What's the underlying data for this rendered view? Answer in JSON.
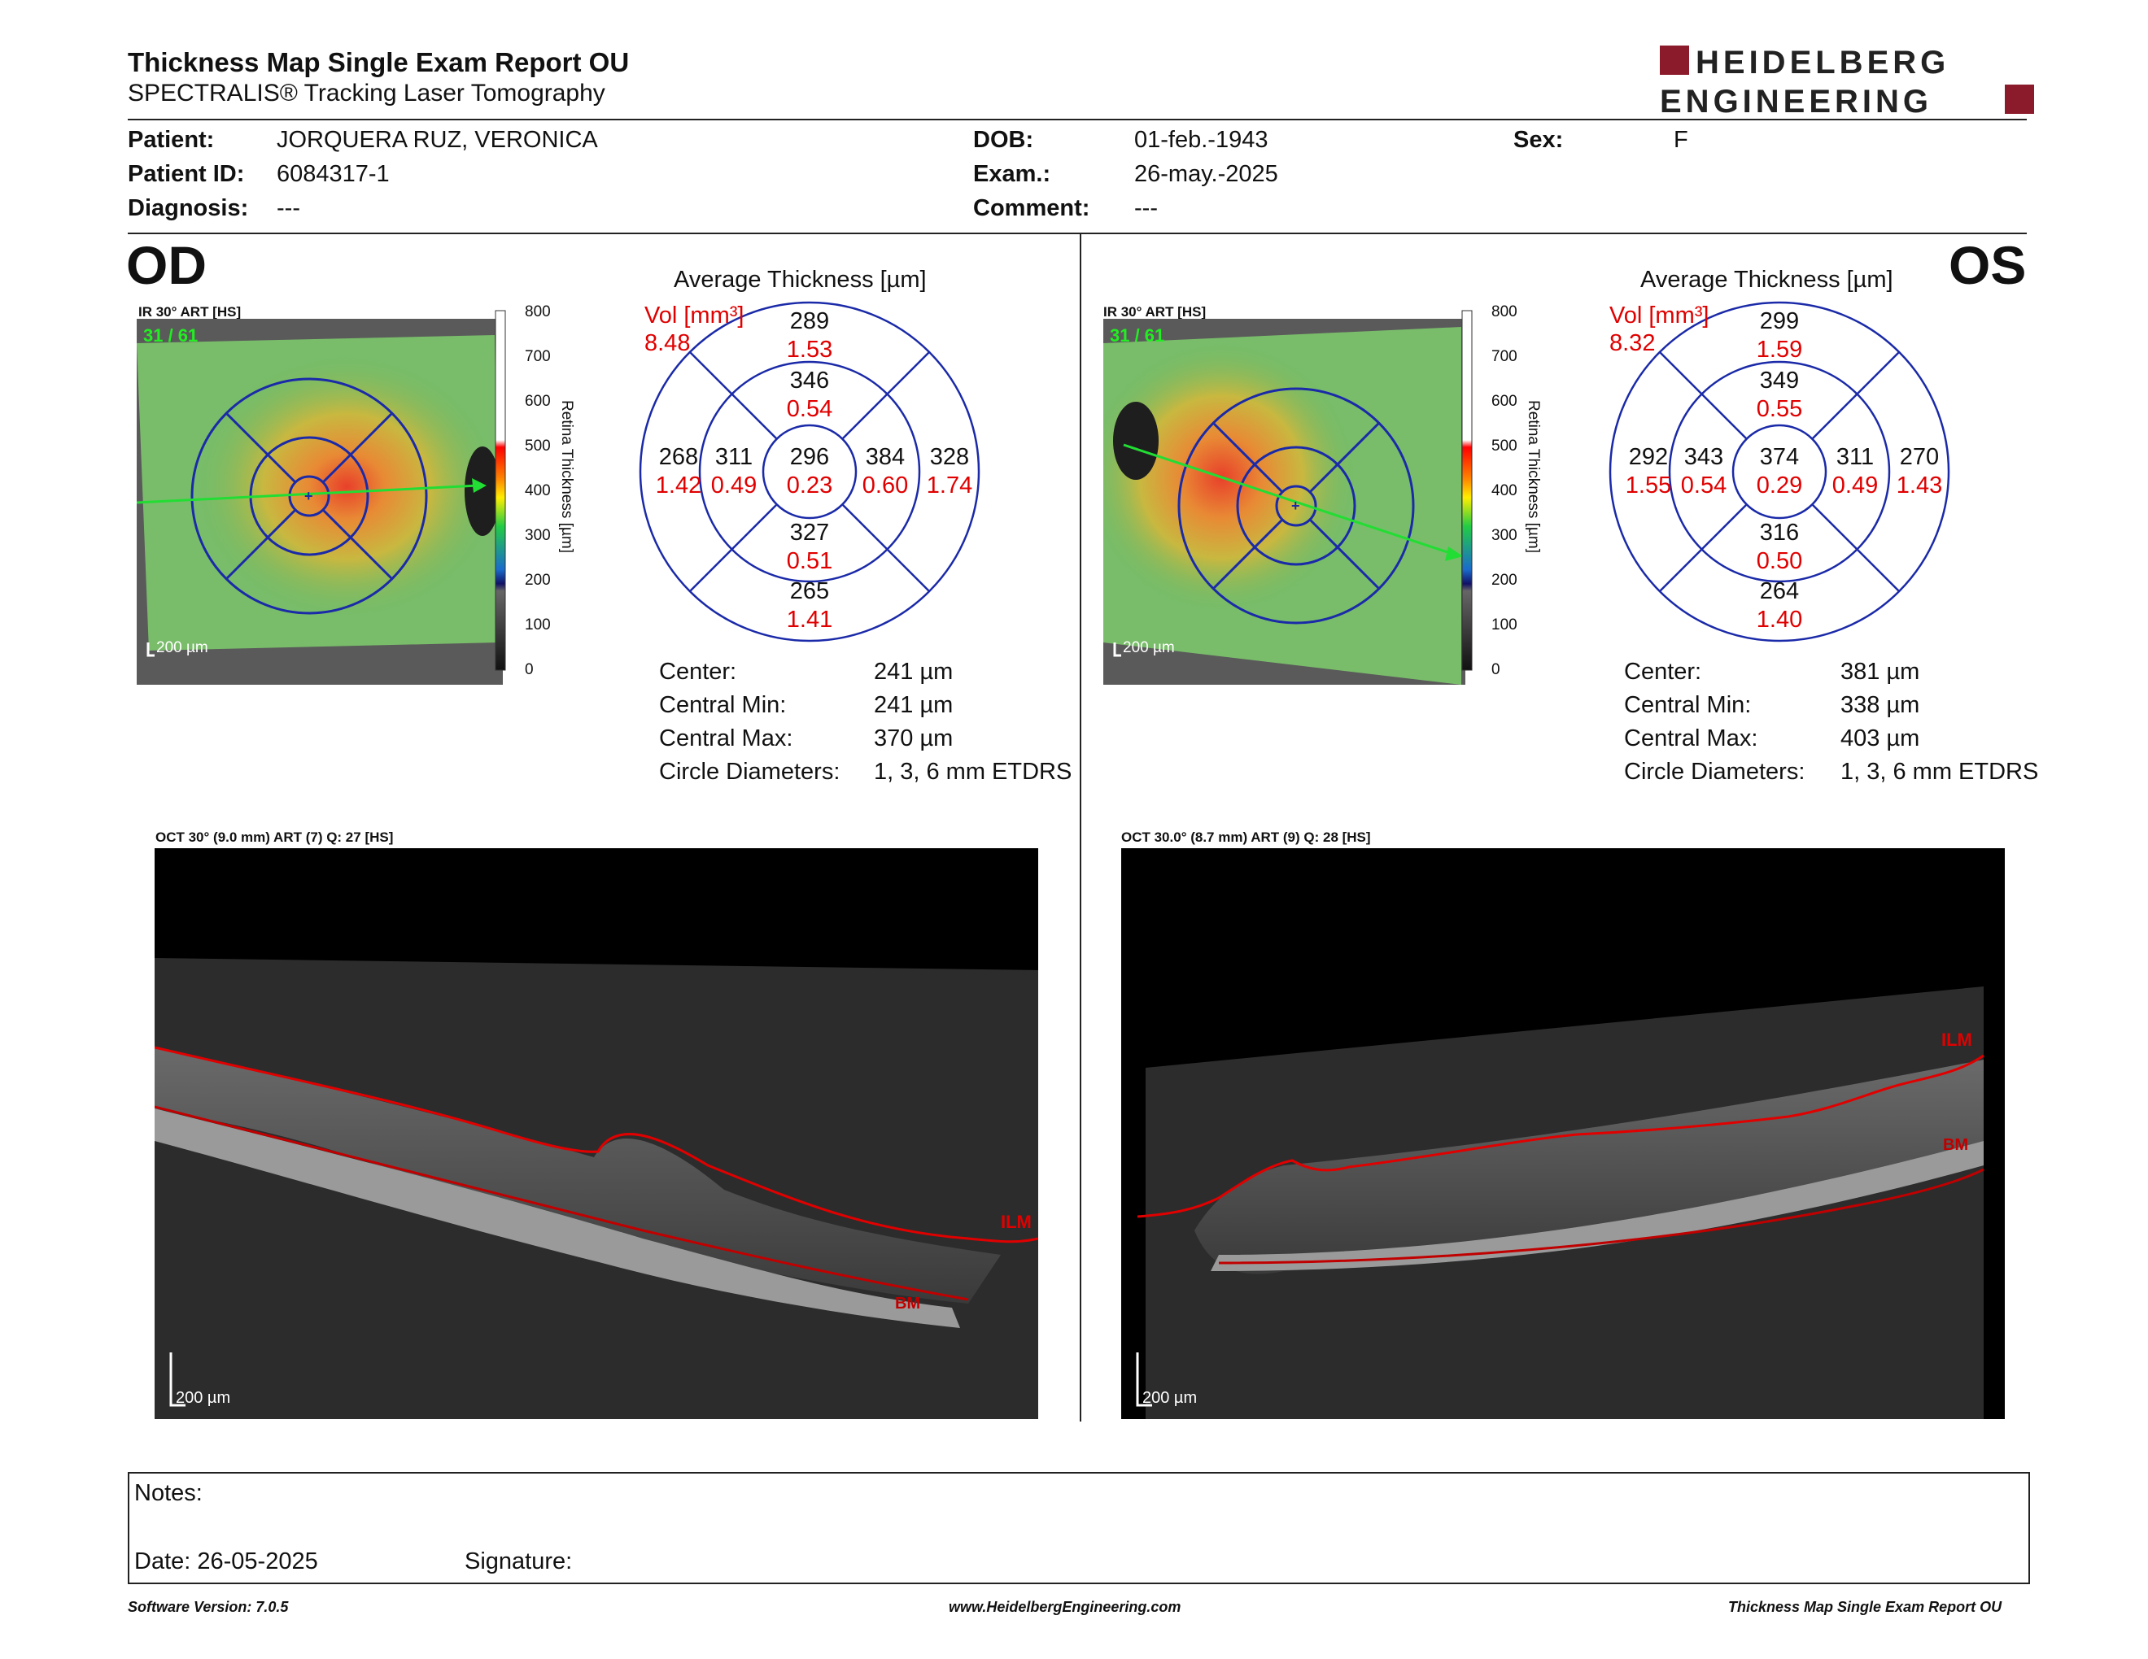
{
  "header": {
    "title": "Thickness Map Single Exam Report OU",
    "subtitle": "SPECTRALIS® Tracking Laser Tomography",
    "logo_line1": "HEIDELBERG",
    "logo_line2": "ENGINEERING",
    "logo_color": "#8b1a2b"
  },
  "patient": {
    "patient_label": "Patient:",
    "patient_value": "JORQUERA RUZ, VERONICA",
    "id_label": "Patient ID:",
    "id_value": "6084317-1",
    "diagnosis_label": "Diagnosis:",
    "diagnosis_value": "---",
    "dob_label": "DOB:",
    "dob_value": "01-feb.-1943",
    "exam_label": "Exam.:",
    "exam_value": "26-may.-2025",
    "comment_label": "Comment:",
    "comment_value": "---",
    "sex_label": "Sex:",
    "sex_value": "F"
  },
  "colorbar": {
    "title": "Retina Thickness [µm]",
    "ticks": [
      "800",
      "700",
      "600",
      "500",
      "400",
      "300",
      "200",
      "100",
      "0"
    ]
  },
  "od": {
    "eye": "OD",
    "ir_caption": "IR 30° ART [HS]",
    "frame": "31 / 61",
    "scale": "200 µm",
    "avg_title": "Average Thickness [µm]",
    "vol_label": "Vol [mm³]",
    "vol_total": "8.48",
    "sectors": {
      "center_t": "296",
      "center_v": "0.23",
      "inner_sup_t": "346",
      "inner_sup_v": "0.54",
      "inner_inf_t": "327",
      "inner_inf_v": "0.51",
      "inner_left_t": "311",
      "inner_left_v": "0.49",
      "inner_right_t": "384",
      "inner_right_v": "0.60",
      "outer_sup_t": "289",
      "outer_sup_v": "1.53",
      "outer_inf_t": "265",
      "outer_inf_v": "1.41",
      "outer_left_t": "268",
      "outer_left_v": "1.42",
      "outer_right_t": "328",
      "outer_right_v": "1.74"
    },
    "stats": {
      "center_label": "Center:",
      "center_value": "241 µm",
      "min_label": "Central Min:",
      "min_value": "241 µm",
      "max_label": "Central Max:",
      "max_value": "370 µm",
      "diam_label": "Circle Diameters:",
      "diam_value": "1, 3, 6 mm ETDRS"
    },
    "oct_caption": "OCT 30° (9.0 mm) ART (7) Q: 27 [HS]",
    "oct_scale": "200 µm",
    "ilm": "ILM",
    "bm": "BM"
  },
  "os": {
    "eye": "OS",
    "ir_caption": "IR 30° ART [HS]",
    "frame": "31 / 61",
    "scale": "200 µm",
    "avg_title": "Average Thickness [µm]",
    "vol_label": "Vol [mm³]",
    "vol_total": "8.32",
    "sectors": {
      "center_t": "374",
      "center_v": "0.29",
      "inner_sup_t": "349",
      "inner_sup_v": "0.55",
      "inner_inf_t": "316",
      "inner_inf_v": "0.50",
      "inner_left_t": "343",
      "inner_left_v": "0.54",
      "inner_right_t": "311",
      "inner_right_v": "0.49",
      "outer_sup_t": "299",
      "outer_sup_v": "1.59",
      "outer_inf_t": "264",
      "outer_inf_v": "1.40",
      "outer_left_t": "292",
      "outer_left_v": "1.55",
      "outer_right_t": "270",
      "outer_right_v": "1.43"
    },
    "stats": {
      "center_label": "Center:",
      "center_value": "381 µm",
      "min_label": "Central Min:",
      "min_value": "338 µm",
      "max_label": "Central Max:",
      "max_value": "403 µm",
      "diam_label": "Circle Diameters:",
      "diam_value": "1, 3, 6 mm ETDRS"
    },
    "oct_caption": "OCT 30.0° (8.7 mm) ART (9) Q: 28 [HS]",
    "oct_scale": "200 µm",
    "ilm": "ILM",
    "bm": "BM"
  },
  "notes": {
    "notes_label": "Notes:",
    "date_label": "Date: 26-05-2025",
    "signature_label": "Signature:"
  },
  "footer": {
    "software": "Software Version: 7.0.5",
    "website": "www.HeidelbergEngineering.com",
    "report": "Thickness Map Single Exam Report OU"
  }
}
